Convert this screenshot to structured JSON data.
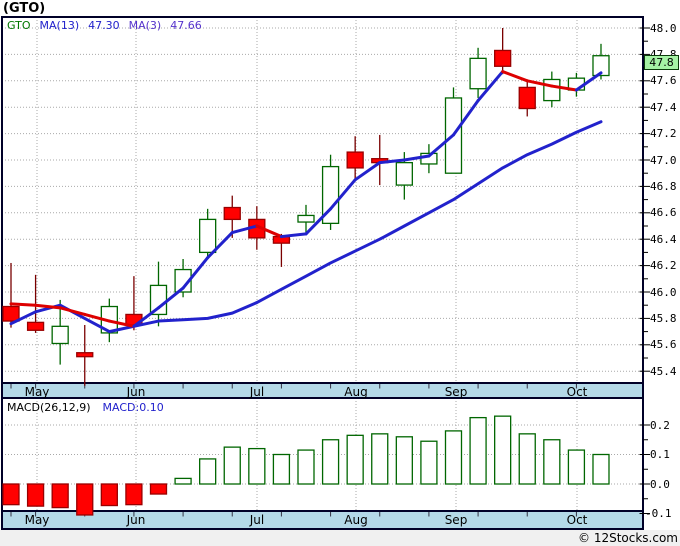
{
  "header": {
    "title": "(GTO)"
  },
  "legend": {
    "symbol": "GTO",
    "ma13_label": "MA(13)",
    "ma13_value": "47.30",
    "ma3_label": "MA(3)",
    "ma3_value": "47.66"
  },
  "macd_legend": {
    "label": "MACD(26,12,9)",
    "value_label": "MACD:0.10"
  },
  "price_tag": "47.8",
  "copyright": "© 12Stocks.com",
  "axes": {
    "price_ticks": [
      "48.0",
      "47.8",
      "47.6",
      "47.4",
      "47.2",
      "47.0",
      "46.8",
      "46.6",
      "46.4",
      "46.2",
      "46.0",
      "45.8",
      "45.6",
      "45.4"
    ],
    "months": [
      "May",
      "Jun",
      "Jul",
      "Aug",
      "Sep",
      "Oct"
    ],
    "macd_ticks": [
      "0.2",
      "0.1",
      "0.0",
      "-0.1"
    ]
  },
  "colors": {
    "candle_up_border": "#006600",
    "candle_up_fill": "#FFFFFF",
    "candle_down_fill": "#FF0000",
    "candle_down_border": "#990000",
    "wick_up": "#006600",
    "wick_down": "#7A0000",
    "ma_blue": "#2222CC",
    "ma_down_red": "#DD0000",
    "grid": "#A9A9A9",
    "axis_strip": "#B4D9E8",
    "frame": "#000028",
    "tag_bg": "#A5F2A5"
  },
  "chart_data": {
    "type": "candlestick",
    "title": "(GTO)",
    "x_labels": [
      "May",
      "Jun",
      "Jul",
      "Aug",
      "Sep",
      "Oct"
    ],
    "panels": [
      {
        "name": "price",
        "type": "candlestick",
        "ylim": [
          45.3,
          48.08
        ],
        "y_tick_step": 0.2,
        "last_price": 47.8,
        "candles_ohlc": [
          [
            45.89,
            46.22,
            45.73,
            45.78
          ],
          [
            45.77,
            46.13,
            45.69,
            45.71
          ],
          [
            45.61,
            45.94,
            45.45,
            45.74
          ],
          [
            45.54,
            45.75,
            45.29,
            45.51
          ],
          [
            45.69,
            45.95,
            45.62,
            45.89
          ],
          [
            45.83,
            46.12,
            45.71,
            45.75
          ],
          [
            45.83,
            46.23,
            45.74,
            46.05
          ],
          [
            46.0,
            46.25,
            45.96,
            46.17
          ],
          [
            46.3,
            46.63,
            46.26,
            46.55
          ],
          [
            46.64,
            46.73,
            46.41,
            46.55
          ],
          [
            46.55,
            46.65,
            46.32,
            46.41
          ],
          [
            46.42,
            46.44,
            46.19,
            46.37
          ],
          [
            46.53,
            46.66,
            46.44,
            46.58
          ],
          [
            46.52,
            47.04,
            46.47,
            46.95
          ],
          [
            47.06,
            47.18,
            46.86,
            46.94
          ],
          [
            47.01,
            47.19,
            46.81,
            46.98
          ],
          [
            46.81,
            47.06,
            46.7,
            46.98
          ],
          [
            46.97,
            47.12,
            46.9,
            47.05
          ],
          [
            46.9,
            47.55,
            46.9,
            47.47
          ],
          [
            47.54,
            47.85,
            47.47,
            47.77
          ],
          [
            47.83,
            48.0,
            47.65,
            47.71
          ],
          [
            47.55,
            47.61,
            47.33,
            47.39
          ],
          [
            47.45,
            47.67,
            47.4,
            47.61
          ],
          [
            47.53,
            47.66,
            47.48,
            47.62
          ],
          [
            47.64,
            47.88,
            47.61,
            47.79
          ]
        ],
        "overlays": [
          {
            "name": "MA(13)",
            "value": 47.3,
            "values": [
              45.76,
              45.85,
              45.9,
              45.8,
              45.7,
              45.74,
              45.78,
              45.79,
              45.8,
              45.84,
              45.92,
              46.02,
              46.12,
              46.22,
              46.31,
              46.4,
              46.5,
              46.6,
              46.7,
              46.82,
              46.94,
              47.04,
              47.12,
              47.21,
              47.29
            ]
          },
          {
            "name": "MA(3)",
            "value": 47.66,
            "values": [
              45.91,
              45.9,
              45.88,
              45.83,
              45.78,
              45.74,
              45.88,
              46.03,
              46.26,
              46.45,
              46.5,
              46.42,
              46.44,
              46.63,
              46.85,
              46.98,
              47.0,
              47.03,
              47.19,
              47.45,
              47.67,
              47.6,
              47.56,
              47.53,
              47.66
            ]
          }
        ]
      },
      {
        "name": "MACD(26,12,9)",
        "type": "bar",
        "current": 0.1,
        "ylim": [
          -0.15,
          0.28
        ],
        "y_ticks": [
          0.2,
          0.1,
          0.0,
          -0.1
        ],
        "values": [
          -0.07,
          -0.075,
          -0.08,
          -0.105,
          -0.073,
          -0.07,
          -0.034,
          0.019,
          0.085,
          0.125,
          0.12,
          0.1,
          0.115,
          0.15,
          0.165,
          0.17,
          0.16,
          0.145,
          0.18,
          0.225,
          0.23,
          0.17,
          0.15,
          0.115,
          0.1
        ]
      }
    ]
  }
}
